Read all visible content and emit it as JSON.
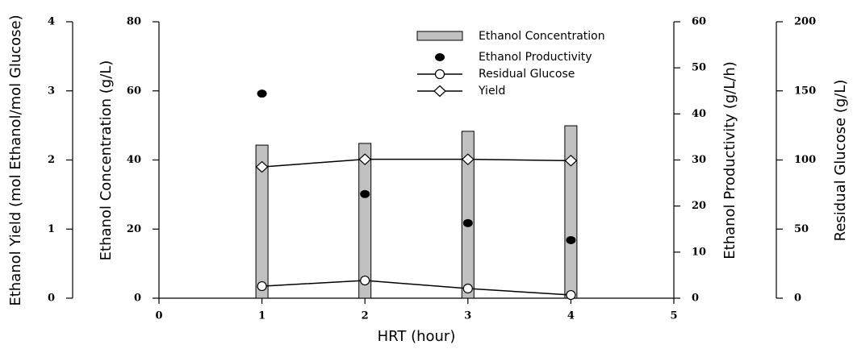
{
  "chart_data": {
    "type": "multi-axis",
    "xlabel": "HRT (hour)",
    "x": [
      1,
      2,
      3,
      4
    ],
    "xlim": [
      0,
      5
    ],
    "xticks": [
      0,
      1,
      2,
      3,
      4,
      5
    ],
    "ylabel": "Ethanol Concentration (g/L)",
    "ylim": [
      0,
      80
    ],
    "yticks": [
      0,
      20,
      40,
      60,
      80
    ],
    "y2label": "Ethanol Productivity (g/L/h)",
    "y2lim": [
      0,
      60
    ],
    "y2ticks": [
      0,
      10,
      20,
      30,
      40,
      50,
      60
    ],
    "y3label": "Residual Glucose (g/L)",
    "y3lim": [
      0,
      200
    ],
    "y3ticks": [
      0,
      50,
      100,
      150,
      200
    ],
    "y4label": "Ethanol Yield (mol Ethanol/mol Glucose)",
    "y4lim": [
      0,
      4
    ],
    "y4ticks": [
      0,
      1,
      2,
      3,
      4
    ],
    "legend": "top-right",
    "series": [
      {
        "name": "Ethanol Concentration",
        "style": "bar",
        "axis": "y",
        "color": "#c0c0c0",
        "values": [
          44.3,
          44.8,
          48.3,
          49.9
        ]
      },
      {
        "name": "Ethanol Productivity",
        "style": "dot",
        "axis": "y2",
        "color": "#000000",
        "values": [
          44.4,
          22.6,
          16.3,
          12.6
        ]
      },
      {
        "name": "Residual Glucose",
        "style": "line-circle",
        "axis": "y3",
        "color": "#000000",
        "values": [
          8.7,
          12.8,
          7.0,
          2.3
        ]
      },
      {
        "name": "Yield",
        "style": "line-diamond",
        "axis": "y4",
        "color": "#000000",
        "values": [
          1.9,
          2.01,
          2.01,
          1.99
        ]
      }
    ]
  }
}
